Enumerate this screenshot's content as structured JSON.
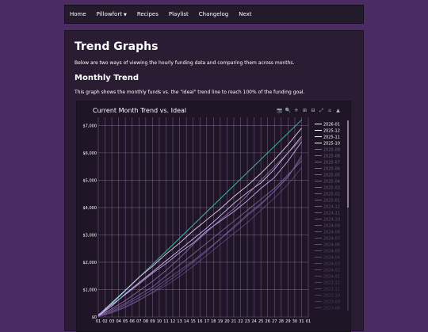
{
  "nav": {
    "items": [
      "Home",
      "Pillowfort",
      "Recipes",
      "Playlist",
      "Changelog",
      "Next"
    ]
  },
  "page": {
    "title": "Trend Graphs",
    "intro": "Below are two ways of viewing the hourly funding data and comparing them across months.",
    "section_title": "Monthly Trend",
    "section_desc": "This graph shows the monthly funds vs. the \"ideal\" trend line to reach 100% of the funding goal."
  },
  "chart_toolbar": {
    "icons": [
      "camera-icon",
      "zoom-icon",
      "pan-icon",
      "zoom-in-icon",
      "zoom-out-icon",
      "autoscale-icon",
      "home-icon",
      "plotly-logo-icon"
    ],
    "color": "#bbbbbb"
  },
  "colors": {
    "accent": "#c9a6ff",
    "ideal": "#3fb8a8",
    "grid": "#a990c6",
    "bg": "#1f1527"
  },
  "chart_data": {
    "type": "line",
    "title": "Current Month Trend vs. Ideal",
    "xlabel": "",
    "ylabel": "",
    "x_ticks": [
      "01",
      "02",
      "03",
      "04",
      "05",
      "06",
      "07",
      "08",
      "09",
      "10",
      "11",
      "12",
      "13",
      "14",
      "15",
      "16",
      "17",
      "18",
      "19",
      "20",
      "21",
      "22",
      "23",
      "24",
      "25",
      "26",
      "27",
      "28",
      "29",
      "30",
      "31",
      "01"
    ],
    "xlim": [
      1,
      32
    ],
    "y_ticks": [
      "$0",
      "$1,000",
      "$2,000",
      "$3,000",
      "$4,000",
      "$5,000",
      "$6,000",
      "$7,000"
    ],
    "ylim": [
      0,
      7300
    ],
    "grid": true,
    "legend_position": "right",
    "legend_visible": [
      "2026-01",
      "2025-12",
      "2025-11",
      "2025-10",
      "2025-09",
      "2025-08",
      "2025-07",
      "2025-06",
      "2025-05",
      "2025-04",
      "2025-03",
      "2025-02",
      "2025-01",
      "2024-12",
      "2024-11",
      "2024-10",
      "2024-09",
      "2024-08",
      "2024-07",
      "2024-06",
      "2024-05",
      "2024-04",
      "2024-03",
      "2024-02",
      "2024-01",
      "2023-12",
      "2023-11",
      "2023-10",
      "2023-09",
      "2023-08"
    ],
    "series": [
      {
        "name": "Ideal",
        "x": [
          1,
          31
        ],
        "values": [
          0,
          7200
        ]
      },
      {
        "name": "2025-12",
        "x": [
          1,
          3,
          5,
          7,
          9,
          11,
          13,
          15,
          17,
          19,
          21,
          23,
          25,
          27,
          29,
          31
        ],
        "values": [
          60,
          520,
          980,
          1450,
          1850,
          2300,
          2700,
          3150,
          3550,
          3950,
          4400,
          4800,
          5250,
          5750,
          6300,
          6900
        ]
      },
      {
        "name": "2025-11",
        "x": [
          1,
          3,
          5,
          7,
          9,
          11,
          13,
          15,
          17,
          19,
          21,
          23,
          25,
          27,
          29,
          31
        ],
        "values": [
          40,
          400,
          850,
          1250,
          1650,
          2050,
          2450,
          2850,
          3250,
          3700,
          4150,
          4550,
          4900,
          5400,
          6000,
          6600
        ]
      },
      {
        "name": "2025-10",
        "x": [
          1,
          3,
          5,
          7,
          9,
          11,
          13,
          15,
          17,
          19,
          21,
          23,
          25,
          27,
          29,
          31
        ],
        "values": [
          80,
          450,
          820,
          1200,
          1600,
          1950,
          2350,
          2700,
          3150,
          3500,
          3850,
          4250,
          4700,
          5100,
          5700,
          6400
        ]
      },
      {
        "name": "2025-09",
        "x": [
          1,
          3,
          5,
          7,
          9,
          11,
          13,
          15,
          17,
          19,
          21,
          23,
          25,
          27,
          29,
          31
        ],
        "values": [
          30,
          300,
          600,
          950,
          1300,
          1700,
          2150,
          2650,
          3100,
          3550,
          3950,
          4450,
          5000,
          5500,
          6000,
          6500
        ]
      },
      {
        "name": "2025-08",
        "x": [
          1,
          3,
          5,
          7,
          9,
          11,
          13,
          15,
          17,
          19,
          21,
          23,
          25,
          27,
          29,
          31
        ],
        "values": [
          50,
          250,
          500,
          800,
          1100,
          1500,
          1900,
          2300,
          2700,
          3100,
          3500,
          3900,
          4300,
          4700,
          5200,
          5700
        ]
      },
      {
        "name": "2025-07",
        "x": [
          1,
          3,
          5,
          7,
          9,
          11,
          13,
          15,
          17,
          19,
          21,
          23,
          25,
          27,
          29,
          31
        ],
        "values": [
          20,
          200,
          450,
          700,
          1000,
          1350,
          1700,
          2050,
          2450,
          2850,
          3300,
          3750,
          4150,
          4600,
          5100,
          5900
        ]
      },
      {
        "name": "2025-06",
        "x": [
          1,
          3,
          5,
          7,
          9,
          11,
          13,
          15,
          17,
          19,
          21,
          23,
          25,
          27,
          29,
          31
        ],
        "values": [
          10,
          150,
          350,
          600,
          900,
          1250,
          1600,
          2000,
          2400,
          2850,
          3250,
          3700,
          4100,
          4600,
          5150,
          5800
        ]
      },
      {
        "name": "2025-05",
        "x": [
          1,
          3,
          5,
          7,
          9,
          11,
          13,
          15,
          17,
          19,
          21,
          23,
          25,
          27,
          29,
          31
        ],
        "values": [
          20,
          180,
          380,
          620,
          880,
          1150,
          1480,
          1850,
          2250,
          2650,
          3050,
          3450,
          3900,
          4350,
          4850,
          5450
        ]
      }
    ]
  }
}
